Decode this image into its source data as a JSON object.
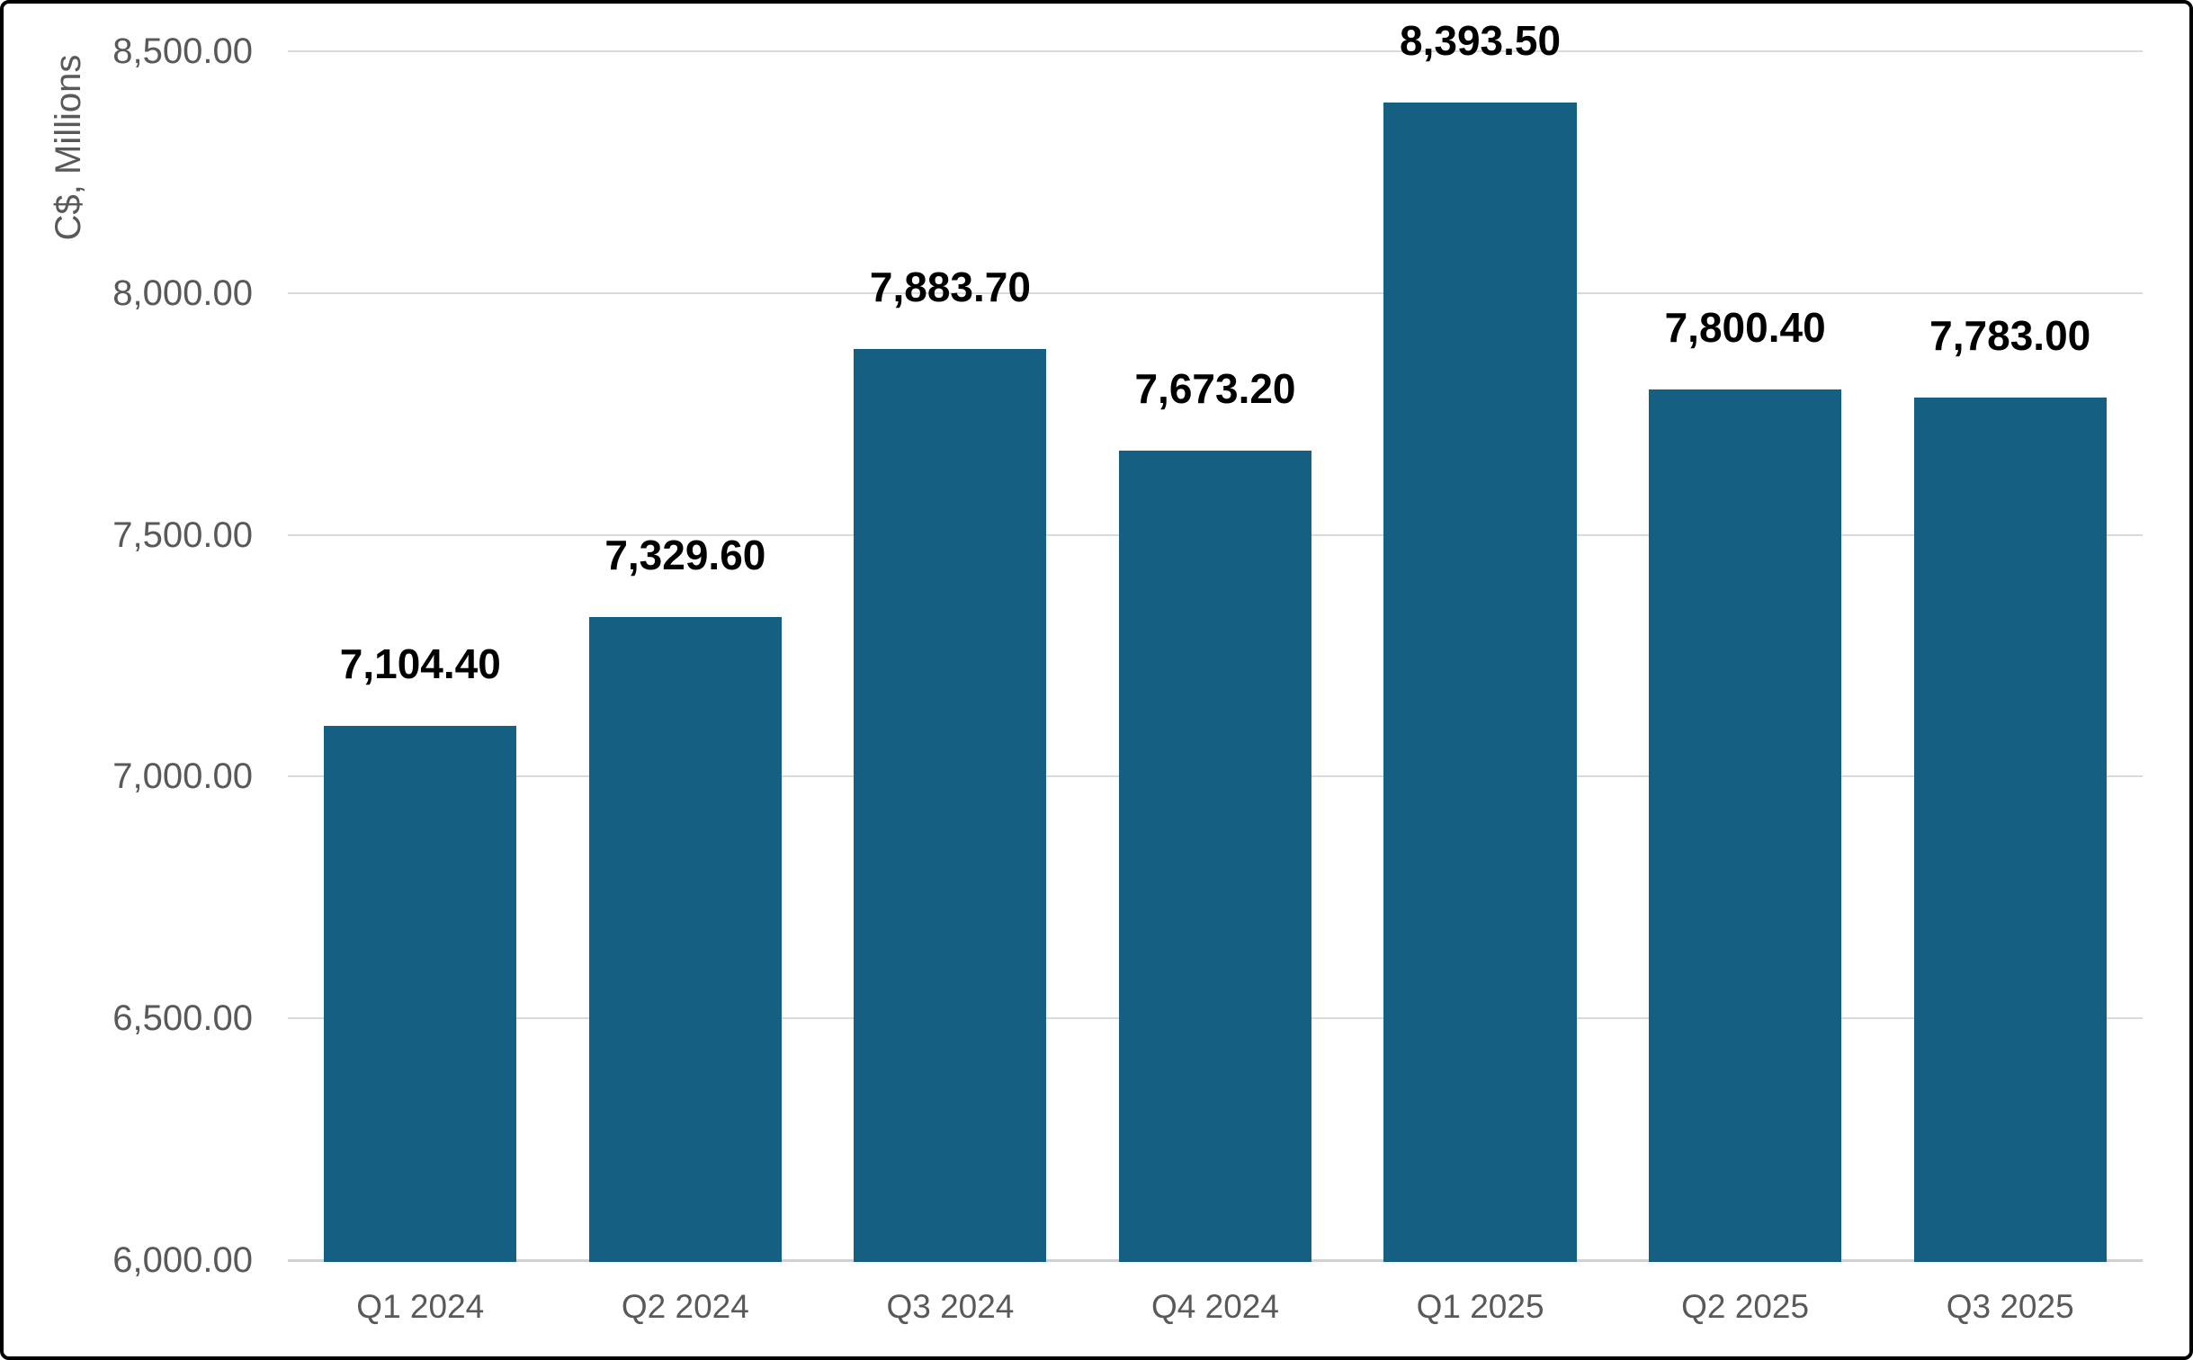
{
  "chart_data": {
    "type": "bar",
    "title": "",
    "xlabel": "",
    "ylabel": "C$, Millions",
    "categories": [
      "Q1 2024",
      "Q2 2024",
      "Q3 2024",
      "Q4 2024",
      "Q1 2025",
      "Q2 2025",
      "Q3 2025"
    ],
    "values": [
      7104.4,
      7329.6,
      7883.7,
      7673.2,
      8393.5,
      7800.4,
      7783.0
    ],
    "data_labels": [
      "7,104.40",
      "7,329.60",
      "7,883.70",
      "7,673.20",
      "8,393.50",
      "7,800.40",
      "7,783.00"
    ],
    "ylim": [
      6000,
      8500
    ],
    "ytick_interval": 500,
    "yticks": [
      {
        "value": 8500,
        "label": "8,500.00"
      },
      {
        "value": 8000,
        "label": "8,000.00"
      },
      {
        "value": 7500,
        "label": "7,500.00"
      },
      {
        "value": 7000,
        "label": "7,000.00"
      },
      {
        "value": 6500,
        "label": "6,500.00"
      },
      {
        "value": 6000,
        "label": "6,000.00"
      }
    ],
    "grid": true,
    "legend": false
  },
  "colors": {
    "bar": "#156082",
    "gridline": "#DADADA",
    "axis_line": "#D0D0D0",
    "tick_label": "#595959",
    "data_label": "#000000",
    "background": "#FFFFFF",
    "frame_border": "#000000"
  }
}
